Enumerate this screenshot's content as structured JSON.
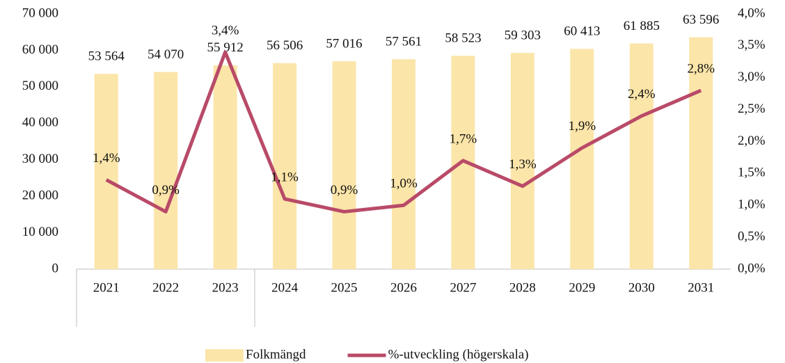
{
  "chart_data": {
    "type": "bar",
    "categories": [
      "2021",
      "2022",
      "2023",
      "2024",
      "2025",
      "2026",
      "2027",
      "2028",
      "2029",
      "2030",
      "2031"
    ],
    "series": [
      {
        "name": "Folkmängd",
        "type": "bar",
        "color": "#fbe5a9",
        "values": [
          53564,
          54070,
          55912,
          56506,
          57016,
          57561,
          58523,
          59303,
          60413,
          61885,
          63596
        ],
        "value_labels": [
          "53 564",
          "54 070",
          "55 912",
          "56 506",
          "57 016",
          "57 561",
          "58 523",
          "59 303",
          "60 413",
          "61 885",
          "63 596"
        ]
      },
      {
        "name": "%-utveckling (högerskala)",
        "type": "line",
        "axis": "y2",
        "color": "#b94a68",
        "values": [
          1.4,
          0.9,
          3.4,
          1.1,
          0.9,
          1.0,
          1.7,
          1.3,
          1.9,
          2.4,
          2.8
        ],
        "value_labels": [
          "1,4%",
          "0,9%",
          "3,4%",
          "1,1%",
          "0,9%",
          "1,0%",
          "1,7%",
          "1,3%",
          "1,9%",
          "2,4%",
          "2,8%"
        ]
      }
    ],
    "ylim": [
      0,
      70000
    ],
    "yticks": [
      0,
      {
        "value": 10000,
        "label": "10 000"
      },
      {
        "value": 20000,
        "label": "20 000"
      },
      {
        "value": 30000,
        "label": "30 000"
      },
      {
        "value": 40000,
        "label": "40 000"
      },
      {
        "value": 50000,
        "label": "50 000"
      },
      {
        "value": 60000,
        "label": "60 000"
      },
      {
        "value": 70000,
        "label": "70 000"
      }
    ],
    "y2lim": [
      0,
      4.0
    ],
    "y2ticks": [
      {
        "value": 0,
        "label": "0,0%"
      },
      {
        "value": 0.5,
        "label": "0,5%"
      },
      {
        "value": 1.0,
        "label": "1,0%"
      },
      {
        "value": 1.5,
        "label": "1,5%"
      },
      {
        "value": 2.0,
        "label": "2,0%"
      },
      {
        "value": 2.5,
        "label": "2,5%"
      },
      {
        "value": 3.0,
        "label": "3,0%"
      },
      {
        "value": 3.5,
        "label": "3,5%"
      },
      {
        "value": 4.0,
        "label": "4,0%"
      }
    ],
    "grid": false,
    "legend": "bottom"
  }
}
